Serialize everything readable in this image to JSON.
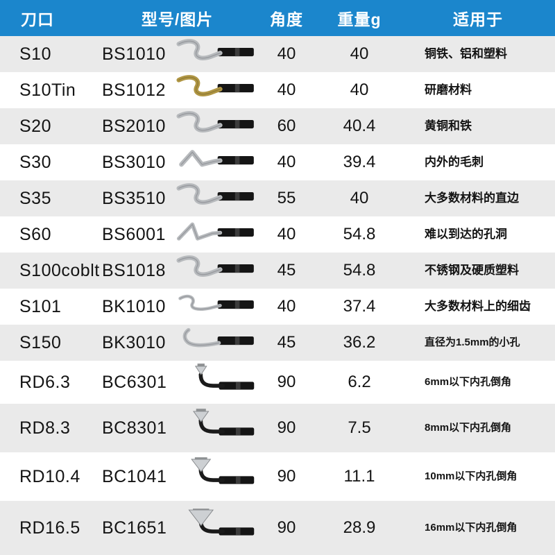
{
  "header": {
    "columns": [
      "刀口",
      "型号/图片",
      "角度",
      "重量g",
      "适用于"
    ]
  },
  "rows": [
    {
      "blade": "S10",
      "model": "BS1010",
      "icon": "blade-hook-silver",
      "angle": "40",
      "weight": "40",
      "desc": "铜铁、铝和塑料"
    },
    {
      "blade": "S10Tin",
      "model": "BS1012",
      "icon": "blade-hook-gold",
      "angle": "40",
      "weight": "40",
      "desc": "研磨材料"
    },
    {
      "blade": "S20",
      "model": "BS2010",
      "icon": "blade-hook-silver",
      "angle": "60",
      "weight": "40.4",
      "desc": "黄铜和铁"
    },
    {
      "blade": "S30",
      "model": "BS3010",
      "icon": "blade-wide-silver",
      "angle": "40",
      "weight": "39.4",
      "desc": "内外的毛刺"
    },
    {
      "blade": "S35",
      "model": "BS3510",
      "icon": "blade-hook-silver",
      "angle": "55",
      "weight": "40",
      "desc": "大多数材料的直边"
    },
    {
      "blade": "S60",
      "model": "BS6001",
      "icon": "blade-zigzag-silver",
      "angle": "40",
      "weight": "54.8",
      "desc": "难以到达的孔洞"
    },
    {
      "blade": "S100coblt",
      "model": "BS1018",
      "icon": "blade-hook-silver",
      "angle": "45",
      "weight": "54.8",
      "desc": "不锈钢及硬质塑料"
    },
    {
      "blade": "S101",
      "model": "BK1010",
      "icon": "blade-scurve-silver",
      "angle": "40",
      "weight": "37.4",
      "desc": "大多数材料上的细齿"
    },
    {
      "blade": "S150",
      "model": "BK3010",
      "icon": "blade-bent-silver",
      "angle": "45",
      "weight": "36.2",
      "desc": "直径为1.5mm的小孔"
    },
    {
      "blade": "RD6.3",
      "model": "BC6301",
      "icon": "countersink-small",
      "angle": "90",
      "weight": "6.2",
      "desc": "6mm以下内孔倒角"
    },
    {
      "blade": "RD8.3",
      "model": "BC8301",
      "icon": "countersink-medium",
      "angle": "90",
      "weight": "7.5",
      "desc": "8mm以下内孔倒角"
    },
    {
      "blade": "RD10.4",
      "model": "BC1041",
      "icon": "countersink-large",
      "angle": "90",
      "weight": "11.1",
      "desc": "10mm以下内孔倒角"
    },
    {
      "blade": "RD16.5",
      "model": "BC1651",
      "icon": "countersink-xlarge",
      "angle": "90",
      "weight": "28.9",
      "desc": "16mm以下内孔倒角"
    }
  ],
  "colors": {
    "header_bg": "#1b86cc",
    "row_alt_bg": "#eaeaea",
    "text": "#141414"
  }
}
